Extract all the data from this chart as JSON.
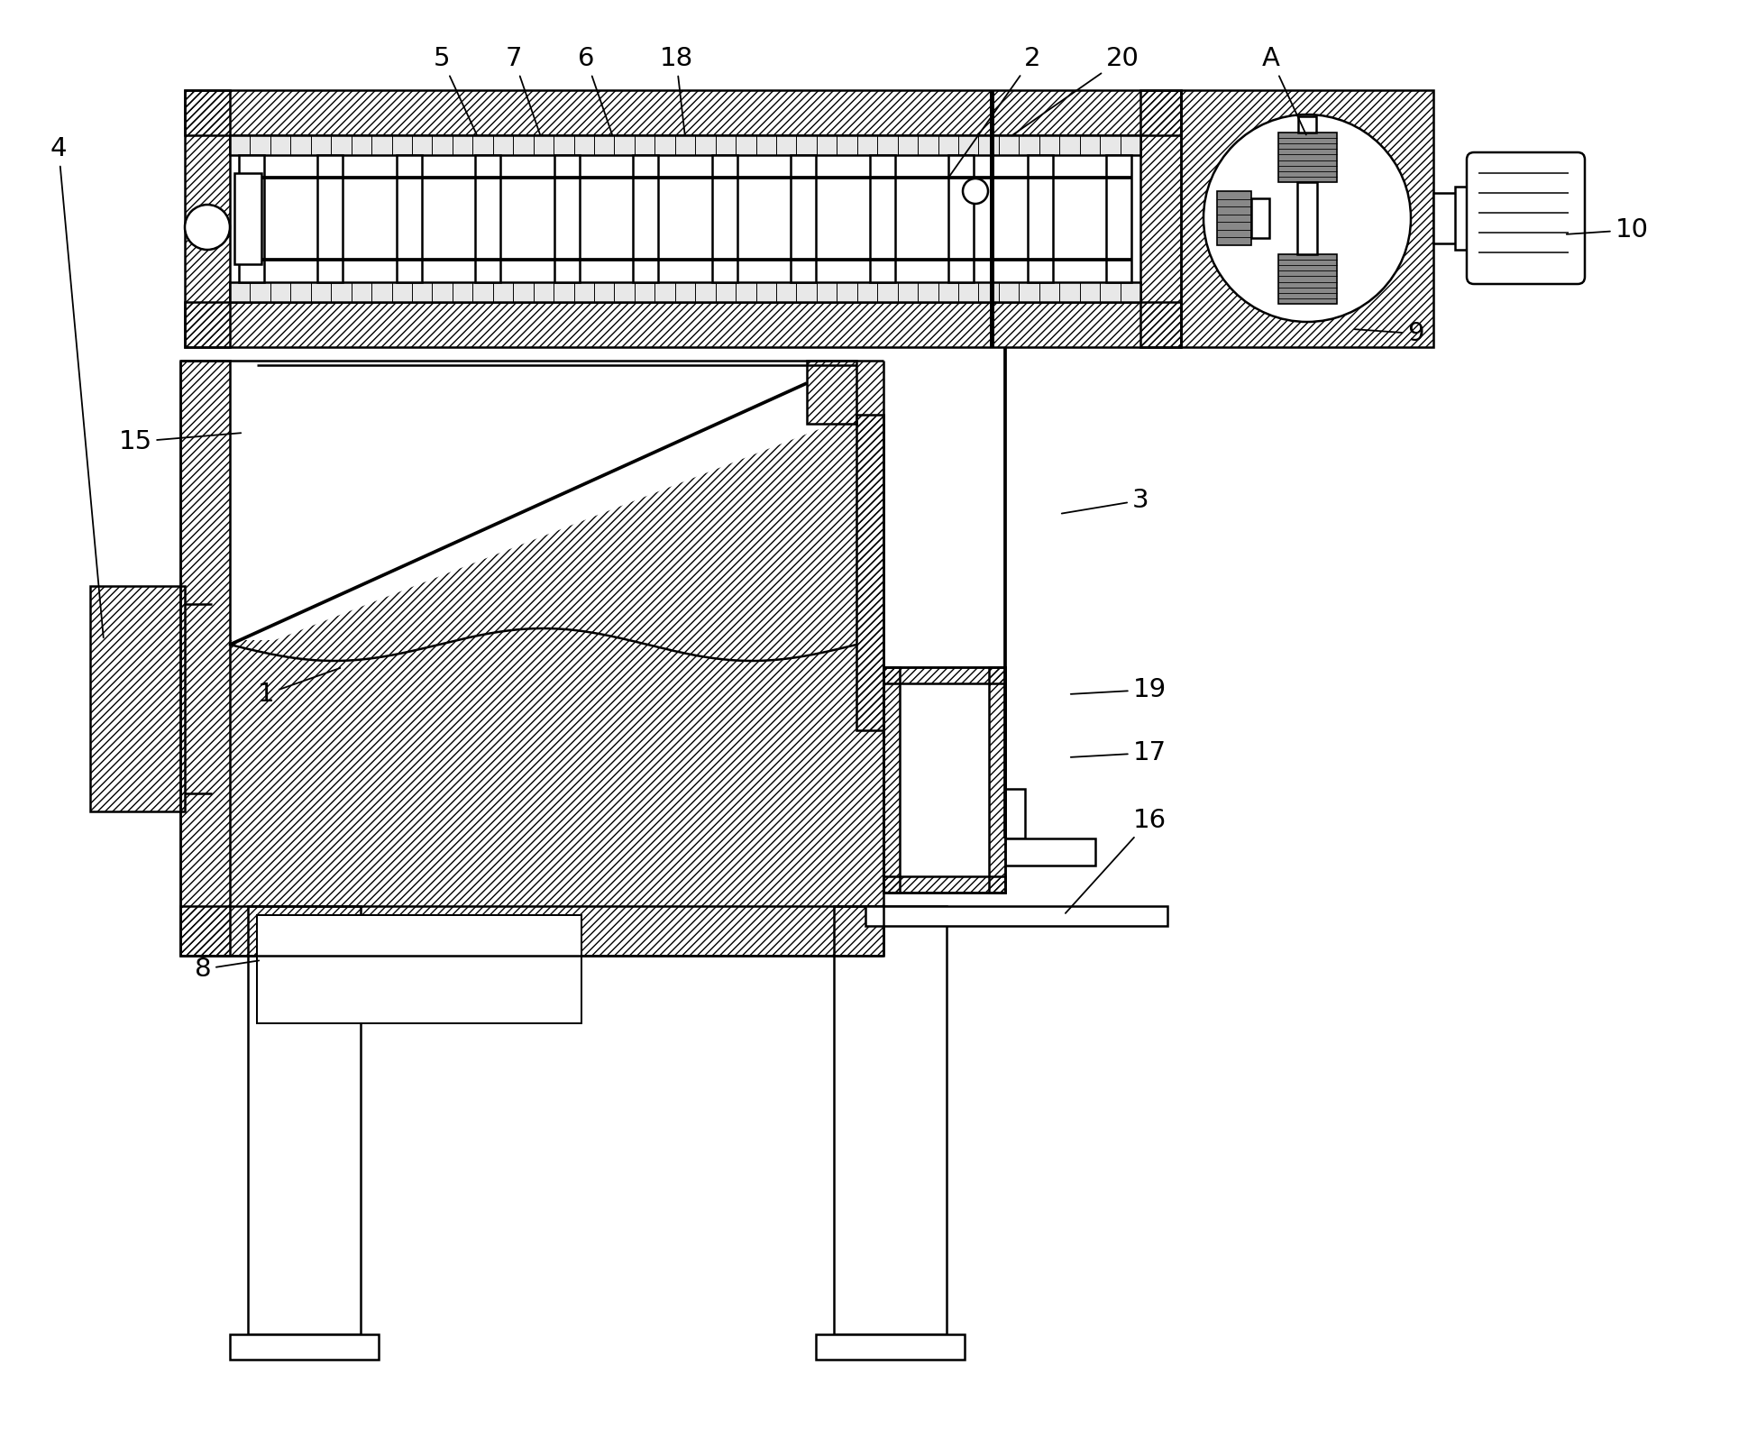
{
  "bg_color": "#ffffff",
  "lw": 1.8,
  "hatch_lw": 0.5
}
